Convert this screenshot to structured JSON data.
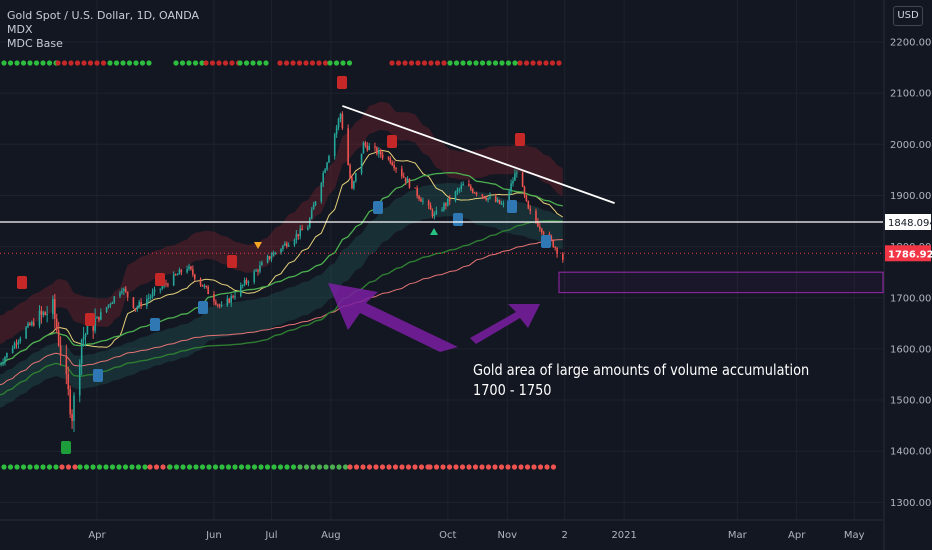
{
  "header": {
    "symbol_line": "Gold Spot / U.S. Dollar, 1D, OANDA",
    "indicator_1": "MDX",
    "indicator_2": "MDC Base",
    "currency": "USD"
  },
  "annotation": {
    "line1": "Gold area of large amounts of volume accumulation",
    "line2": "1700 - 1750"
  },
  "price_labels": {
    "resistance": "1848.094",
    "current": "1786.920"
  },
  "colors": {
    "background": "#131722",
    "up": "#26a69a",
    "down": "#ef5350",
    "trendline": "#ffffff",
    "zone": "#9c27b0",
    "current_label": "#f23645"
  },
  "chart_data": {
    "type": "candlestick",
    "y_ticks": [
      1300,
      1400,
      1500,
      1600,
      1700,
      1800,
      1900,
      2000,
      2100,
      2200
    ],
    "y_tick_labels": [
      "1300.000",
      "1400.000",
      "1500.000",
      "1600.000",
      "1700.000",
      "1800.000",
      "1900.000",
      "2000.000",
      "2100.000",
      "2200.000"
    ],
    "ylim": [
      1275,
      2265
    ],
    "x_range": [
      "2020-02-10",
      "2021-05-31"
    ],
    "x_ticks": [
      {
        "date": "2020-04-01",
        "label": "Apr"
      },
      {
        "date": "2020-06-01",
        "label": "Jun"
      },
      {
        "date": "2020-07-01",
        "label": "Jul"
      },
      {
        "date": "2020-08-01",
        "label": "Aug"
      },
      {
        "date": "2020-10-01",
        "label": "Oct"
      },
      {
        "date": "2020-11-01",
        "label": "Nov"
      },
      {
        "date": "2020-12-01",
        "label": "2"
      },
      {
        "date": "2021-01-01",
        "label": "2021"
      },
      {
        "date": "2021-03-01",
        "label": "Mar"
      },
      {
        "date": "2021-04-01",
        "label": "Apr"
      },
      {
        "date": "2021-05-01",
        "label": "May"
      }
    ],
    "price_path": [
      [
        "2020-02-10",
        1570
      ],
      [
        "2020-02-24",
        1640
      ],
      [
        "2020-03-09",
        1680
      ],
      [
        "2020-03-19",
        1470
      ],
      [
        "2020-03-24",
        1620
      ],
      [
        "2020-04-14",
        1720
      ],
      [
        "2020-04-21",
        1680
      ],
      [
        "2020-05-18",
        1760
      ],
      [
        "2020-06-05",
        1680
      ],
      [
        "2020-06-30",
        1780
      ],
      [
        "2020-07-20",
        1840
      ],
      [
        "2020-08-06",
        2060
      ],
      [
        "2020-08-12",
        1910
      ],
      [
        "2020-08-18",
        2000
      ],
      [
        "2020-09-01",
        1970
      ],
      [
        "2020-09-24",
        1860
      ],
      [
        "2020-10-09",
        1920
      ],
      [
        "2020-10-30",
        1880
      ],
      [
        "2020-11-06",
        1950
      ],
      [
        "2020-11-12",
        1870
      ],
      [
        "2020-11-24",
        1810
      ],
      [
        "2020-11-30",
        1776
      ]
    ],
    "trendline": {
      "start": [
        "2020-08-07",
        2075
      ],
      "end": [
        "2020-12-27",
        1885
      ]
    },
    "horizontal_line": 1848.094,
    "current_price": 1786.92,
    "zone": {
      "from": 1710,
      "to": 1750,
      "start": "2020-11-28",
      "label": "1700 - 1750"
    }
  }
}
